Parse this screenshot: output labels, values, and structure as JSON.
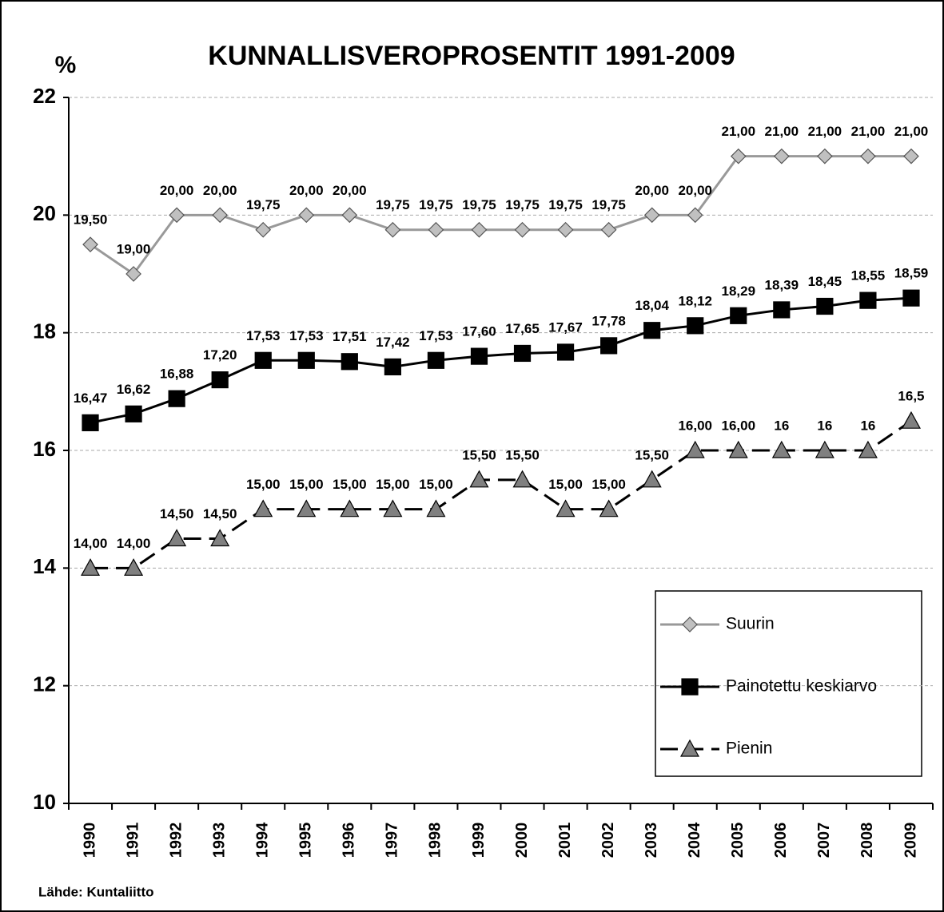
{
  "chart_data": {
    "type": "line",
    "title": "KUNNALLISVEROPROSENTIT 1991-2009",
    "ylabel": "%",
    "source": "Lähde: Kuntaliitto",
    "categories": [
      "1990",
      "1991",
      "1992",
      "1993",
      "1994",
      "1995",
      "1996",
      "1997",
      "1998",
      "1999",
      "2000",
      "2001",
      "2002",
      "2003",
      "2004",
      "2005",
      "2006",
      "2007",
      "2008",
      "2009"
    ],
    "ylim": [
      10,
      22
    ],
    "yticks": [
      10,
      12,
      14,
      16,
      18,
      20,
      22
    ],
    "grid": true,
    "legend": "lower right",
    "series": [
      {
        "name": "Suurin",
        "color": "#999999",
        "marker": "diamond",
        "marker_color": "#c0c0c0",
        "dash": false,
        "values": [
          19.5,
          19.0,
          20.0,
          20.0,
          19.75,
          20.0,
          20.0,
          19.75,
          19.75,
          19.75,
          19.75,
          19.75,
          19.75,
          20.0,
          20.0,
          21.0,
          21.0,
          21.0,
          21.0,
          21.0
        ],
        "value_labels": [
          "19,50",
          "19,00",
          "20,00",
          "20,00",
          "19,75",
          "20,00",
          "20,00",
          "19,75",
          "19,75",
          "19,75",
          "19,75",
          "19,75",
          "19,75",
          "20,00",
          "20,00",
          "21,00",
          "21,00",
          "21,00",
          "21,00",
          "21,00"
        ]
      },
      {
        "name": "Painotettu keskiarvo",
        "color": "#000000",
        "marker": "square",
        "marker_color": "#000000",
        "dash": false,
        "values": [
          16.47,
          16.62,
          16.88,
          17.2,
          17.53,
          17.53,
          17.51,
          17.42,
          17.53,
          17.6,
          17.65,
          17.67,
          17.78,
          18.04,
          18.12,
          18.29,
          18.39,
          18.45,
          18.55,
          18.59
        ],
        "value_labels": [
          "16,47",
          "16,62",
          "16,88",
          "17,20",
          "17,53",
          "17,53",
          "17,51",
          "17,42",
          "17,53",
          "17,60",
          "17,65",
          "17,67",
          "17,78",
          "18,04",
          "18,12",
          "18,29",
          "18,39",
          "18,45",
          "18,55",
          "18,59"
        ]
      },
      {
        "name": "Pienin",
        "color": "#000000",
        "marker": "triangle",
        "marker_color": "#808080",
        "dash": true,
        "values": [
          14.0,
          14.0,
          14.5,
          14.5,
          15.0,
          15.0,
          15.0,
          15.0,
          15.0,
          15.5,
          15.5,
          15.0,
          15.0,
          15.5,
          16.0,
          16.0,
          16,
          16,
          16,
          16.5
        ],
        "value_labels": [
          "14,00",
          "14,00",
          "14,50",
          "14,50",
          "15,00",
          "15,00",
          "15,00",
          "15,00",
          "15,00",
          "15,50",
          "15,50",
          "15,00",
          "15,00",
          "15,50",
          "16,00",
          "16,00",
          "16",
          "16",
          "16",
          "16,5"
        ]
      }
    ]
  }
}
